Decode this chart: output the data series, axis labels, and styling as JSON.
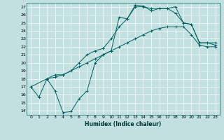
{
  "xlabel": "Humidex (Indice chaleur)",
  "bg_color": "#c2e0e0",
  "line_color": "#006060",
  "grid_color": "#ffffff",
  "xlim": [
    -0.5,
    23.5
  ],
  "ylim": [
    13.5,
    27.5
  ],
  "xticks": [
    0,
    1,
    2,
    3,
    4,
    5,
    6,
    7,
    8,
    9,
    10,
    11,
    12,
    13,
    14,
    15,
    16,
    17,
    18,
    19,
    20,
    21,
    22,
    23
  ],
  "yticks": [
    14,
    15,
    16,
    17,
    18,
    19,
    20,
    21,
    22,
    23,
    24,
    25,
    26,
    27
  ],
  "line1_x": [
    0,
    1,
    2,
    3,
    4,
    5,
    6,
    7,
    8,
    9,
    10,
    11,
    12,
    13,
    14,
    15,
    16,
    17,
    18,
    19,
    20,
    21,
    22,
    23
  ],
  "line1_y": [
    17.0,
    15.7,
    18.0,
    16.5,
    13.8,
    13.9,
    15.5,
    16.5,
    20.0,
    21.0,
    21.5,
    25.7,
    25.5,
    27.2,
    27.1,
    26.5,
    26.8,
    26.8,
    27.0,
    25.0,
    24.8,
    22.5,
    22.5,
    22.5
  ],
  "line2_x": [
    0,
    2,
    3,
    4,
    5,
    6,
    7,
    8,
    9,
    10,
    11,
    12,
    13,
    14,
    15,
    16,
    17,
    18,
    19,
    20,
    21,
    22,
    23
  ],
  "line2_y": [
    17.0,
    18.0,
    18.2,
    18.5,
    19.0,
    19.5,
    20.0,
    20.5,
    21.0,
    21.5,
    22.0,
    22.5,
    23.0,
    23.5,
    24.0,
    24.3,
    24.5,
    24.5,
    24.5,
    23.5,
    22.2,
    22.0,
    22.0
  ],
  "line3_x": [
    2,
    3,
    4,
    5,
    6,
    7,
    8,
    9,
    10,
    11,
    12,
    13,
    14,
    15,
    16,
    17,
    18,
    19,
    20,
    21,
    22,
    23
  ],
  "line3_y": [
    18.0,
    18.5,
    18.5,
    19.0,
    20.0,
    21.0,
    21.5,
    21.8,
    23.0,
    24.5,
    25.5,
    27.0,
    27.0,
    26.8,
    26.8,
    26.8,
    26.2,
    25.0,
    24.8,
    22.5,
    22.5,
    22.2
  ]
}
